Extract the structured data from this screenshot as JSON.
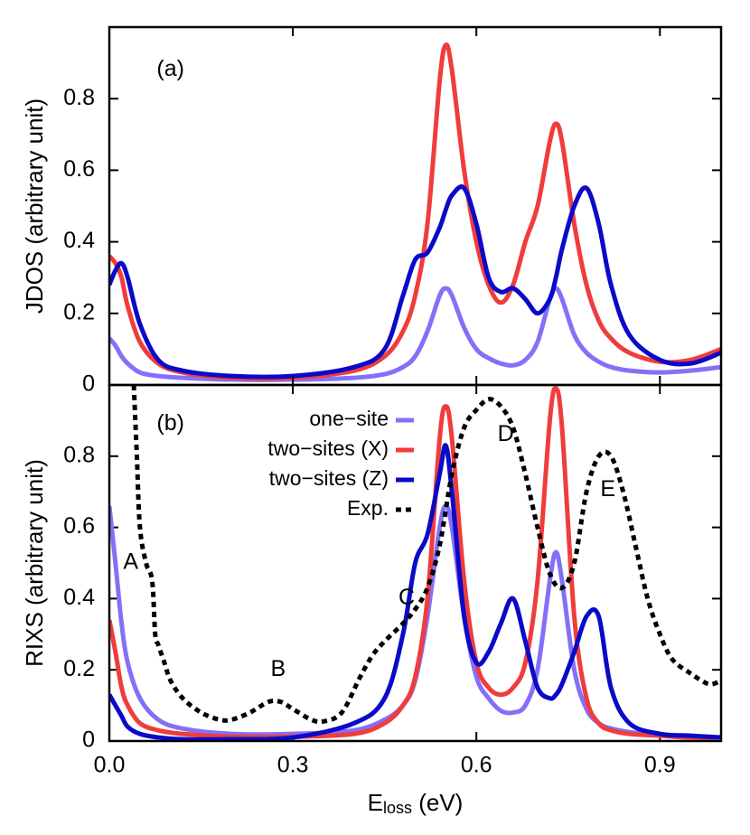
{
  "chart_data": [
    {
      "type": "line",
      "ylabel": "JDOS (arbitrary unit)",
      "xlim": [
        0,
        1
      ],
      "ylim": [
        0,
        1
      ],
      "yticks": [
        0,
        0.2,
        0.4,
        0.6,
        0.8
      ],
      "x": [
        0,
        0.01,
        0.02,
        0.03,
        0.05,
        0.08,
        0.12,
        0.2,
        0.3,
        0.4,
        0.45,
        0.48,
        0.5,
        0.52,
        0.54,
        0.55,
        0.56,
        0.58,
        0.6,
        0.62,
        0.64,
        0.66,
        0.68,
        0.7,
        0.72,
        0.73,
        0.74,
        0.76,
        0.78,
        0.8,
        0.82,
        0.85,
        0.9,
        0.95,
        1.0
      ],
      "series": [
        {
          "color": "#8470f8",
          "values": [
            0.13,
            0.11,
            0.08,
            0.06,
            0.035,
            0.025,
            0.02,
            0.015,
            0.015,
            0.02,
            0.03,
            0.05,
            0.08,
            0.15,
            0.25,
            0.27,
            0.25,
            0.16,
            0.1,
            0.075,
            0.06,
            0.055,
            0.07,
            0.12,
            0.24,
            0.27,
            0.24,
            0.14,
            0.09,
            0.065,
            0.05,
            0.04,
            0.035,
            0.04,
            0.05
          ]
        },
        {
          "color": "#f03c3c",
          "values": [
            0.36,
            0.34,
            0.3,
            0.22,
            0.12,
            0.06,
            0.035,
            0.02,
            0.02,
            0.04,
            0.08,
            0.15,
            0.25,
            0.45,
            0.85,
            0.95,
            0.88,
            0.6,
            0.4,
            0.28,
            0.23,
            0.28,
            0.4,
            0.5,
            0.68,
            0.73,
            0.68,
            0.45,
            0.28,
            0.18,
            0.13,
            0.09,
            0.065,
            0.07,
            0.1
          ]
        },
        {
          "color": "#0a0ac8",
          "values": [
            0.28,
            0.32,
            0.34,
            0.3,
            0.17,
            0.07,
            0.04,
            0.025,
            0.025,
            0.05,
            0.1,
            0.25,
            0.35,
            0.37,
            0.44,
            0.49,
            0.53,
            0.55,
            0.45,
            0.3,
            0.26,
            0.27,
            0.24,
            0.2,
            0.24,
            0.3,
            0.38,
            0.5,
            0.55,
            0.45,
            0.28,
            0.14,
            0.07,
            0.06,
            0.09
          ]
        }
      ],
      "annotations": [
        {
          "text": "(a)",
          "x": 0.1,
          "y": 0.88
        }
      ]
    },
    {
      "type": "line",
      "ylabel": "RIXS (arbitrary unit)",
      "xlabel": [
        "E",
        "loss",
        " (eV)"
      ],
      "xlim": [
        0,
        1
      ],
      "xticks": [
        {
          "value": 0,
          "label": "0.0"
        },
        0.3,
        0.6,
        0.9
      ],
      "ylim": [
        0,
        1
      ],
      "yticks": [
        0,
        0.2,
        0.4,
        0.6,
        0.8
      ],
      "legend": "top",
      "x": [
        0,
        0.01,
        0.02,
        0.03,
        0.05,
        0.08,
        0.12,
        0.2,
        0.3,
        0.4,
        0.45,
        0.48,
        0.5,
        0.52,
        0.54,
        0.55,
        0.56,
        0.58,
        0.6,
        0.62,
        0.64,
        0.66,
        0.68,
        0.7,
        0.72,
        0.73,
        0.74,
        0.76,
        0.78,
        0.8,
        0.82,
        0.85,
        0.9,
        0.95,
        1.0
      ],
      "series": [
        {
          "name": "one−site",
          "color": "#8470f8",
          "values": [
            0.66,
            0.5,
            0.33,
            0.22,
            0.12,
            0.06,
            0.035,
            0.02,
            0.02,
            0.03,
            0.06,
            0.1,
            0.17,
            0.35,
            0.6,
            0.66,
            0.6,
            0.35,
            0.18,
            0.12,
            0.085,
            0.08,
            0.1,
            0.2,
            0.45,
            0.53,
            0.45,
            0.2,
            0.09,
            0.05,
            0.035,
            0.025,
            0.015,
            0.01,
            0.01
          ]
        },
        {
          "name": "two−sites (X)",
          "color": "#f03c3c",
          "values": [
            0.34,
            0.25,
            0.15,
            0.1,
            0.05,
            0.03,
            0.02,
            0.012,
            0.012,
            0.02,
            0.05,
            0.1,
            0.18,
            0.4,
            0.85,
            0.94,
            0.85,
            0.45,
            0.22,
            0.15,
            0.13,
            0.15,
            0.22,
            0.45,
            0.9,
            0.99,
            0.88,
            0.35,
            0.12,
            0.05,
            0.03,
            0.02,
            0.015,
            0.01,
            0.01
          ]
        },
        {
          "name": "two−sites (Z)",
          "color": "#0a0ac8",
          "values": [
            0.13,
            0.1,
            0.07,
            0.04,
            0.02,
            0.01,
            0.005,
            0.005,
            0.01,
            0.05,
            0.12,
            0.3,
            0.5,
            0.58,
            0.75,
            0.83,
            0.7,
            0.35,
            0.22,
            0.25,
            0.33,
            0.4,
            0.28,
            0.15,
            0.12,
            0.13,
            0.16,
            0.25,
            0.35,
            0.35,
            0.15,
            0.05,
            0.02,
            0.015,
            0.01
          ]
        },
        {
          "name": "Exp.",
          "color": "#000000",
          "dashed": true,
          "x": [
            0.04,
            0.045,
            0.05,
            0.06,
            0.07,
            0.075,
            0.08,
            0.09,
            0.1,
            0.12,
            0.15,
            0.18,
            0.2,
            0.23,
            0.26,
            0.28,
            0.3,
            0.33,
            0.35,
            0.38,
            0.41,
            0.43,
            0.45,
            0.48,
            0.5,
            0.52,
            0.54,
            0.56,
            0.58,
            0.6,
            0.62,
            0.64,
            0.66,
            0.68,
            0.7,
            0.72,
            0.74,
            0.76,
            0.78,
            0.8,
            0.82,
            0.84,
            0.86,
            0.88,
            0.9,
            0.92,
            0.95,
            0.98,
            1.0
          ],
          "values": [
            1.0,
            0.8,
            0.6,
            0.5,
            0.45,
            0.3,
            0.27,
            0.22,
            0.17,
            0.12,
            0.08,
            0.06,
            0.06,
            0.08,
            0.11,
            0.11,
            0.09,
            0.06,
            0.055,
            0.08,
            0.18,
            0.24,
            0.28,
            0.33,
            0.37,
            0.43,
            0.55,
            0.75,
            0.88,
            0.93,
            0.96,
            0.94,
            0.88,
            0.75,
            0.6,
            0.47,
            0.43,
            0.5,
            0.7,
            0.8,
            0.8,
            0.7,
            0.55,
            0.4,
            0.3,
            0.23,
            0.19,
            0.16,
            0.17
          ]
        }
      ],
      "annotations": [
        {
          "text": "(b)",
          "x": 0.1,
          "y": 0.89
        },
        {
          "text": "A",
          "x": 0.035,
          "y": 0.5
        },
        {
          "text": "B",
          "x": 0.276,
          "y": 0.2
        },
        {
          "text": "C",
          "x": 0.486,
          "y": 0.4
        },
        {
          "text": "D",
          "x": 0.648,
          "y": 0.86
        },
        {
          "text": "E",
          "x": 0.815,
          "y": 0.705
        }
      ]
    }
  ]
}
